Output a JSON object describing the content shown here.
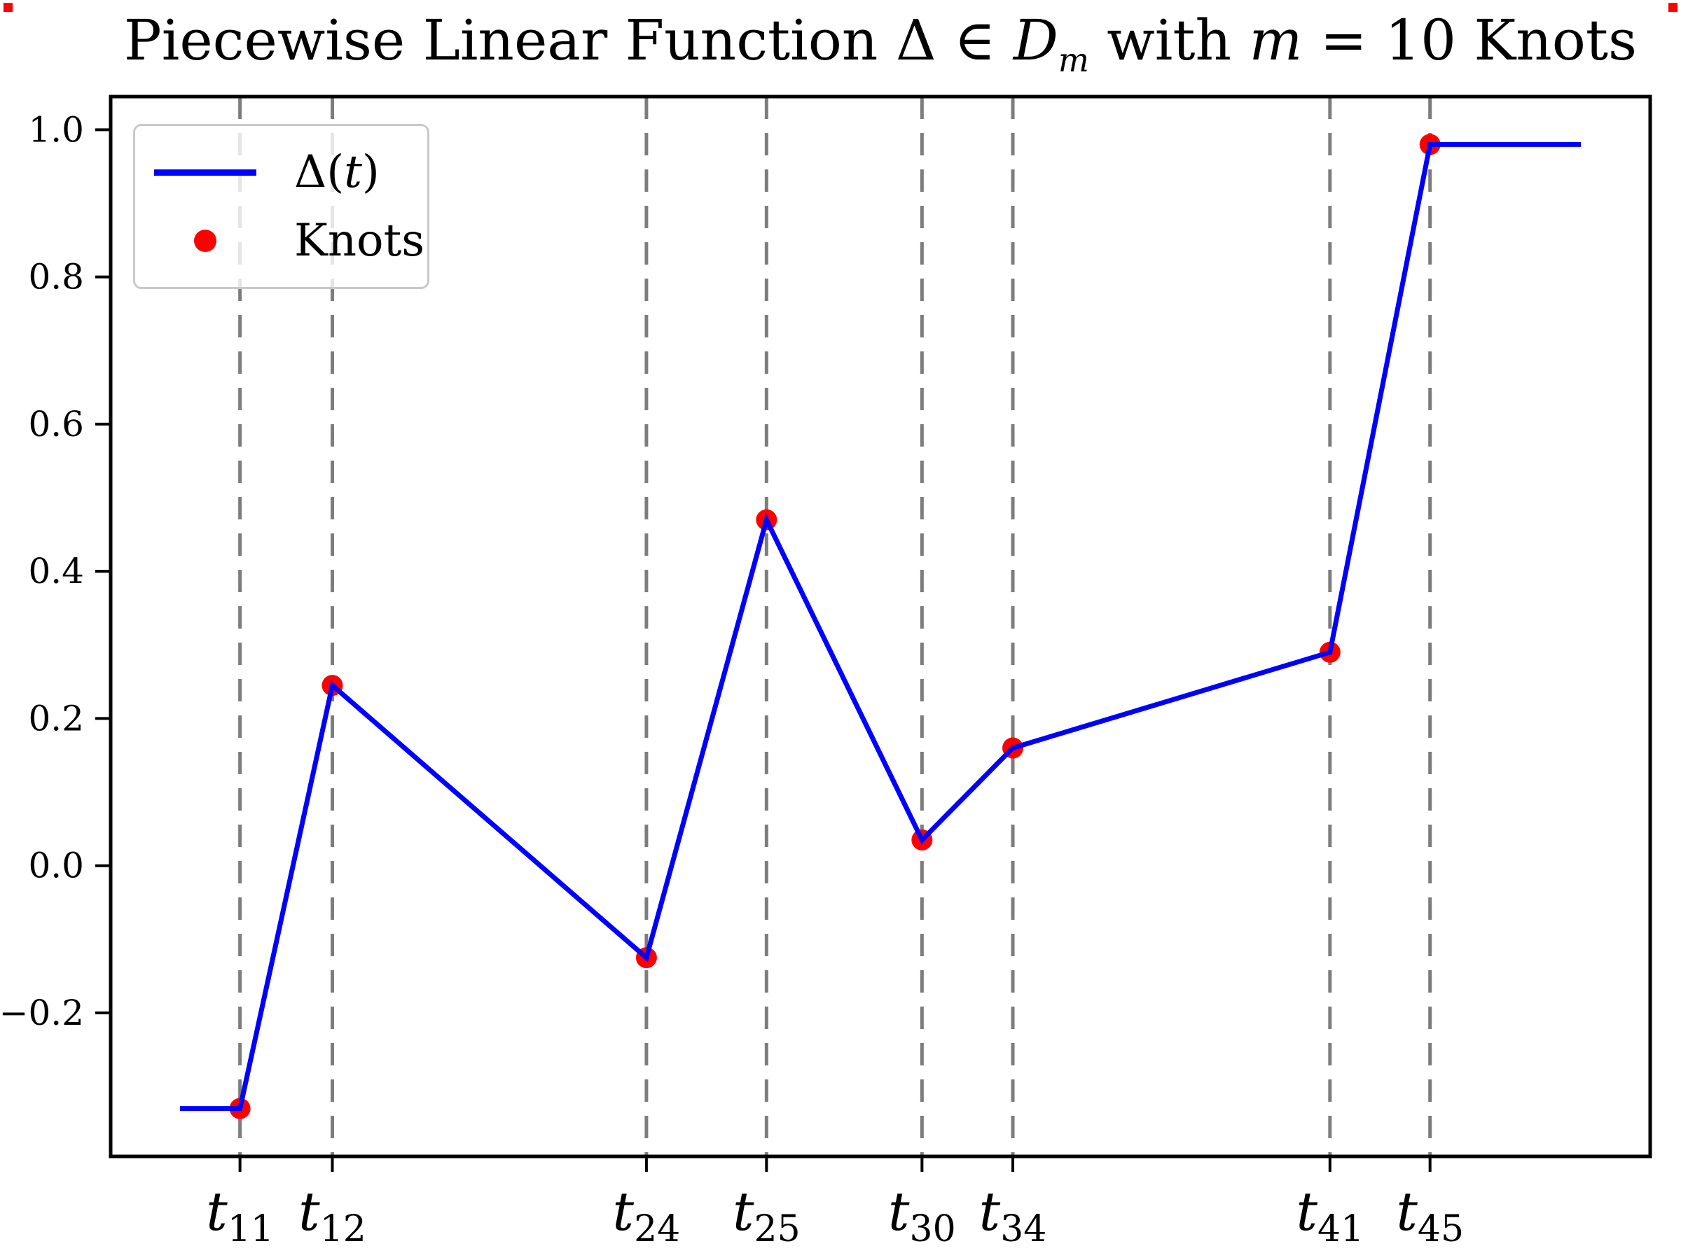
{
  "title": {
    "full": "Piecewise Linear Function Δ ∈ 𝒟ₘ with m = 10 Knots",
    "parts": {
      "lead": "Piecewise Linear Function Δ ∈ ",
      "script_d": "D",
      "sub_m": "m",
      "mid": " with ",
      "var_m": "m",
      "tail": " = 10 Knots"
    }
  },
  "legend": {
    "items": [
      {
        "label": "Δ(t)",
        "label_prefix": "Δ(",
        "label_var": "t",
        "label_suffix": ")",
        "marker": "line",
        "color": "#0000ff"
      },
      {
        "label": "Knots",
        "marker": "dot",
        "color": "#ff0000"
      }
    ],
    "position": "upper left"
  },
  "corner_markers": {
    "color": "#ff0000"
  },
  "chart_data": {
    "type": "line",
    "title": "Piecewise Linear Function Δ ∈ 𝒟ₘ with m = 10 Knots",
    "xlabel": "",
    "ylabel": "",
    "ylim": [
      -0.395,
      1.045
    ],
    "grid": "dashed vertical gray lines at each labeled knot",
    "legend_position": "upper left",
    "colors": {
      "line": "#0000ff",
      "knots": "#ff0000",
      "gridline": "#7d7d7d",
      "axis": "#000000"
    },
    "y_ticks": [
      {
        "value": 1.0,
        "label": "1.0"
      },
      {
        "value": 0.8,
        "label": "0.8"
      },
      {
        "value": 0.6,
        "label": "0.6"
      },
      {
        "value": 0.4,
        "label": "0.4"
      },
      {
        "value": 0.2,
        "label": "0.2"
      },
      {
        "value": 0.0,
        "label": "0.0"
      },
      {
        "value": -0.2,
        "label": "−0.2"
      }
    ],
    "line_series": {
      "name": "Δ(t)",
      "points": [
        {
          "x_frac": 0.045,
          "y": -0.33
        },
        {
          "x_frac": 0.084,
          "y": -0.33
        },
        {
          "x_frac": 0.144,
          "y": 0.245
        },
        {
          "x_frac": 0.348,
          "y": -0.125
        },
        {
          "x_frac": 0.426,
          "y": 0.47
        },
        {
          "x_frac": 0.527,
          "y": 0.035
        },
        {
          "x_frac": 0.586,
          "y": 0.16
        },
        {
          "x_frac": 0.792,
          "y": 0.29
        },
        {
          "x_frac": 0.857,
          "y": 0.98
        },
        {
          "x_frac": 0.955,
          "y": 0.98
        }
      ]
    },
    "knots": {
      "name": "Knots",
      "points": [
        {
          "label_base": "t",
          "label_sub": "11",
          "x_frac": 0.084,
          "y": -0.33
        },
        {
          "label_base": "t",
          "label_sub": "12",
          "x_frac": 0.144,
          "y": 0.245
        },
        {
          "label_base": "t",
          "label_sub": "24",
          "x_frac": 0.348,
          "y": -0.125
        },
        {
          "label_base": "t",
          "label_sub": "25",
          "x_frac": 0.426,
          "y": 0.47
        },
        {
          "label_base": "t",
          "label_sub": "30",
          "x_frac": 0.527,
          "y": 0.035
        },
        {
          "label_base": "t",
          "label_sub": "34",
          "x_frac": 0.586,
          "y": 0.16
        },
        {
          "label_base": "t",
          "label_sub": "41",
          "x_frac": 0.792,
          "y": 0.29
        },
        {
          "label_base": "t",
          "label_sub": "45",
          "x_frac": 0.857,
          "y": 0.98
        }
      ]
    },
    "styles": {
      "line_width": 7,
      "dot_radius": 15,
      "dash_pattern": "32 20",
      "spine_width": 5,
      "tick_len": 22,
      "tick_width": 4
    }
  }
}
